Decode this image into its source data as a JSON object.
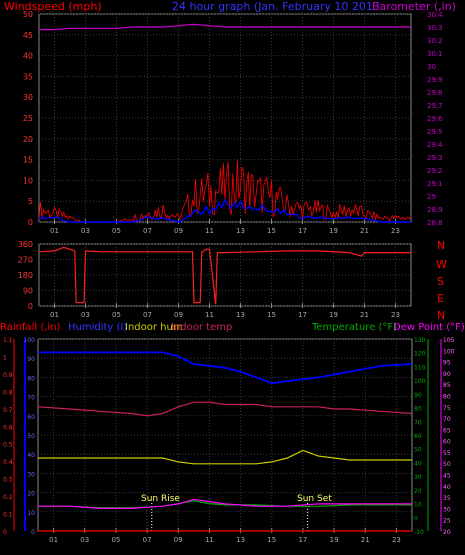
{
  "header": {
    "windspeed_label": "Windspeed (mph)",
    "title": "24 hour graph (Jan. February 10 2013",
    "barometer_label": "Barometer (,in)"
  },
  "direction_labels": [
    "N",
    "W",
    "S",
    "E",
    "N"
  ],
  "bottom_header": {
    "rainfall_label": "Rainfall (,in)",
    "humidity_label": "Humidity (I)",
    "indoor_hum_label": "Indoor hum",
    "indoor_temp_label": "Indoor temp",
    "temperature_label": "Temperature (°F)",
    "dewpoint_label": "Dew Point (°F)"
  },
  "annotations": {
    "sunrise": "Sun Rise",
    "sunset": "Sun Set"
  },
  "colors": {
    "wind": "#ff0000",
    "gust_avg": "#0000ff",
    "barometer": "#cc00cc",
    "direction": "#ff2020",
    "humidity": "#0000ff",
    "indoor_hum": "#cccc00",
    "indoor_temp": "#cc2255",
    "temperature": "#00aa00",
    "dewpoint": "#ff00ff",
    "rain": "#ff0000",
    "grid": "#3a3a3a",
    "axis_text": "#aaaaaa"
  },
  "chart_data": [
    {
      "type": "line",
      "title": "24 hour graph (Jan. February 10 2013",
      "x_ticks": [
        "01",
        "03",
        "05",
        "07",
        "09",
        "11",
        "13",
        "15",
        "17",
        "19",
        "21",
        "23"
      ],
      "x_range": [
        0,
        24
      ],
      "y_left_label": "Windspeed (mph)",
      "y_left_ticks": [
        "0",
        "5",
        "10",
        "15",
        "20",
        "25",
        "30",
        "35",
        "40",
        "45",
        "50"
      ],
      "ylim_left": [
        0,
        50
      ],
      "y_right_label": "Barometer (,in)",
      "y_right_ticks": [
        "28.8",
        "28.9",
        "29",
        "29.1",
        "29.2",
        "29.3",
        "29.4",
        "29.5",
        "29.6",
        "29.7",
        "29.8",
        "29.9",
        "30",
        "30.1",
        "30.2",
        "30.3",
        "30.4"
      ],
      "ylim_right": [
        28.8,
        30.4
      ],
      "grid": true,
      "series": [
        {
          "name": "Barometer",
          "axis": "right",
          "x": [
            0,
            1,
            2,
            3,
            4,
            5,
            6,
            7,
            8,
            9,
            10,
            11,
            12,
            13,
            14,
            15,
            16,
            17,
            18,
            19,
            20,
            21,
            22,
            23,
            24
          ],
          "values": [
            30.28,
            30.28,
            30.29,
            30.29,
            30.29,
            30.29,
            30.3,
            30.3,
            30.3,
            30.31,
            30.32,
            30.31,
            30.3,
            30.3,
            30.3,
            30.3,
            30.3,
            30.3,
            30.3,
            30.3,
            30.3,
            30.3,
            30.3,
            30.3,
            30.3
          ]
        },
        {
          "name": "Wind speed",
          "axis": "left",
          "x": [
            0,
            1,
            2,
            3,
            4,
            5,
            6,
            7,
            8,
            9,
            10,
            11,
            12,
            13,
            14,
            15,
            16,
            17,
            18,
            19,
            20,
            21,
            22,
            23,
            24
          ],
          "values": [
            3,
            2,
            1,
            0,
            0,
            0,
            1,
            2,
            3,
            1,
            6,
            7,
            8,
            9,
            7,
            6,
            4,
            3,
            3,
            2,
            3,
            2,
            1,
            1,
            1
          ]
        },
        {
          "name": "Average speed",
          "axis": "left",
          "x": [
            0,
            1,
            2,
            3,
            4,
            5,
            6,
            7,
            8,
            9,
            10,
            11,
            12,
            13,
            14,
            15,
            16,
            17,
            18,
            19,
            20,
            21,
            22,
            23,
            24
          ],
          "values": [
            1,
            1,
            0,
            0,
            0,
            0,
            0,
            1,
            1,
            0,
            2,
            3,
            4,
            4,
            3,
            3,
            2,
            1,
            1,
            1,
            1,
            1,
            0,
            0,
            0
          ]
        }
      ]
    },
    {
      "type": "line",
      "x_ticks": [
        "01",
        "03",
        "05",
        "07",
        "09",
        "11",
        "13",
        "15",
        "17",
        "19",
        "21",
        "23"
      ],
      "x_range": [
        0,
        24
      ],
      "y_ticks": [
        "0",
        "90",
        "180",
        "270",
        "360"
      ],
      "ylim": [
        0,
        360
      ],
      "grid": true,
      "series": [
        {
          "name": "Wind direction",
          "x": [
            0,
            1.0,
            1.6,
            2.3,
            2.4,
            2.9,
            3.0,
            4,
            6,
            8,
            9.9,
            10.0,
            10.4,
            10.5,
            10.8,
            11.0,
            11.4,
            11.5,
            12,
            14,
            16,
            18,
            20,
            20.8,
            21,
            22,
            24
          ],
          "values": [
            315,
            320,
            340,
            320,
            20,
            20,
            320,
            315,
            315,
            315,
            315,
            20,
            20,
            315,
            330,
            330,
            10,
            310,
            310,
            315,
            320,
            320,
            310,
            290,
            310,
            310,
            310
          ]
        }
      ]
    },
    {
      "type": "line",
      "x_ticks": [
        "01",
        "03",
        "05",
        "07",
        "09",
        "11",
        "13",
        "15",
        "17",
        "19",
        "21",
        "23"
      ],
      "x_range": [
        0,
        24
      ],
      "y_left_label": "Rainfall (,in)",
      "y_left_outer_ticks": [
        "0",
        "0.1",
        "0.2",
        "0.3",
        "0.4",
        "0.5",
        "0.6",
        "0.7",
        "0.8",
        "0.9",
        "1",
        "1.1"
      ],
      "ylim_left_outer": [
        0,
        1.1
      ],
      "y_left_inner_ticks": [
        "0",
        "10",
        "20",
        "30",
        "40",
        "50",
        "60",
        "70",
        "80",
        "90",
        "100"
      ],
      "ylim_left_inner": [
        0,
        100
      ],
      "y_right_inner_ticks": [
        "-10",
        "0",
        "10",
        "20",
        "30",
        "40",
        "50",
        "60",
        "70",
        "80",
        "90",
        "100",
        "110",
        "120",
        "130"
      ],
      "ylim_right_inner": [
        -10,
        130
      ],
      "y_right_outer_ticks": [
        "20",
        "25",
        "30",
        "35",
        "40",
        "45",
        "50",
        "55",
        "60",
        "65",
        "70",
        "75",
        "80",
        "85",
        "90",
        "95",
        "100",
        "105"
      ],
      "ylim_right_outer": [
        20,
        105
      ],
      "grid": true,
      "annotations": [
        {
          "text": "Sun Rise",
          "x": 7.3
        },
        {
          "text": "Sun Set",
          "x": 17.3
        }
      ],
      "series": [
        {
          "name": "Humidity",
          "axis": "left_inner",
          "x": [
            0,
            2,
            4,
            6,
            8,
            9,
            10,
            11,
            12,
            13,
            14,
            15,
            16,
            18,
            20,
            22,
            24
          ],
          "values": [
            93,
            93,
            93,
            93,
            93,
            91,
            87,
            86,
            85,
            83,
            80,
            77,
            78,
            80,
            83,
            86,
            87
          ]
        },
        {
          "name": "Indoor hum",
          "axis": "left_inner",
          "x": [
            0,
            2,
            4,
            6,
            8,
            9,
            10,
            11,
            12,
            13,
            14,
            15,
            16,
            17,
            18,
            19,
            20,
            22,
            24
          ],
          "values": [
            38,
            38,
            38,
            38,
            38,
            36,
            35,
            35,
            35,
            35,
            35,
            36,
            38,
            42,
            39,
            38,
            37,
            37,
            37
          ]
        },
        {
          "name": "Indoor temp",
          "axis": "right_outer",
          "x": [
            0,
            2,
            4,
            6,
            7,
            8,
            9,
            10,
            11,
            12,
            13,
            14,
            15,
            16,
            17,
            18,
            19,
            20,
            22,
            24
          ],
          "values": [
            75,
            74,
            73,
            72,
            71,
            72,
            75,
            77,
            77,
            76,
            76,
            76,
            75,
            75,
            75,
            75,
            74,
            74,
            73,
            72
          ]
        },
        {
          "name": "Temperature",
          "axis": "right_inner",
          "x": [
            0,
            2,
            4,
            6,
            8,
            9,
            10,
            11,
            12,
            14,
            16,
            18,
            20,
            22,
            24
          ],
          "values": [
            8,
            8,
            7,
            7,
            8,
            10,
            12,
            10,
            9,
            9,
            8,
            8,
            9,
            9,
            9
          ]
        },
        {
          "name": "Dew Point",
          "axis": "right_outer",
          "x": [
            0,
            2,
            4,
            6,
            8,
            9,
            10,
            11,
            12,
            14,
            16,
            18,
            20,
            22,
            24
          ],
          "values": [
            31,
            31,
            30,
            30,
            31,
            32,
            34,
            33,
            32,
            31,
            31,
            32,
            32,
            32,
            32
          ]
        },
        {
          "name": "Rainfall",
          "axis": "left_outer",
          "x": [
            0,
            24
          ],
          "values": [
            0,
            0
          ]
        }
      ]
    }
  ]
}
